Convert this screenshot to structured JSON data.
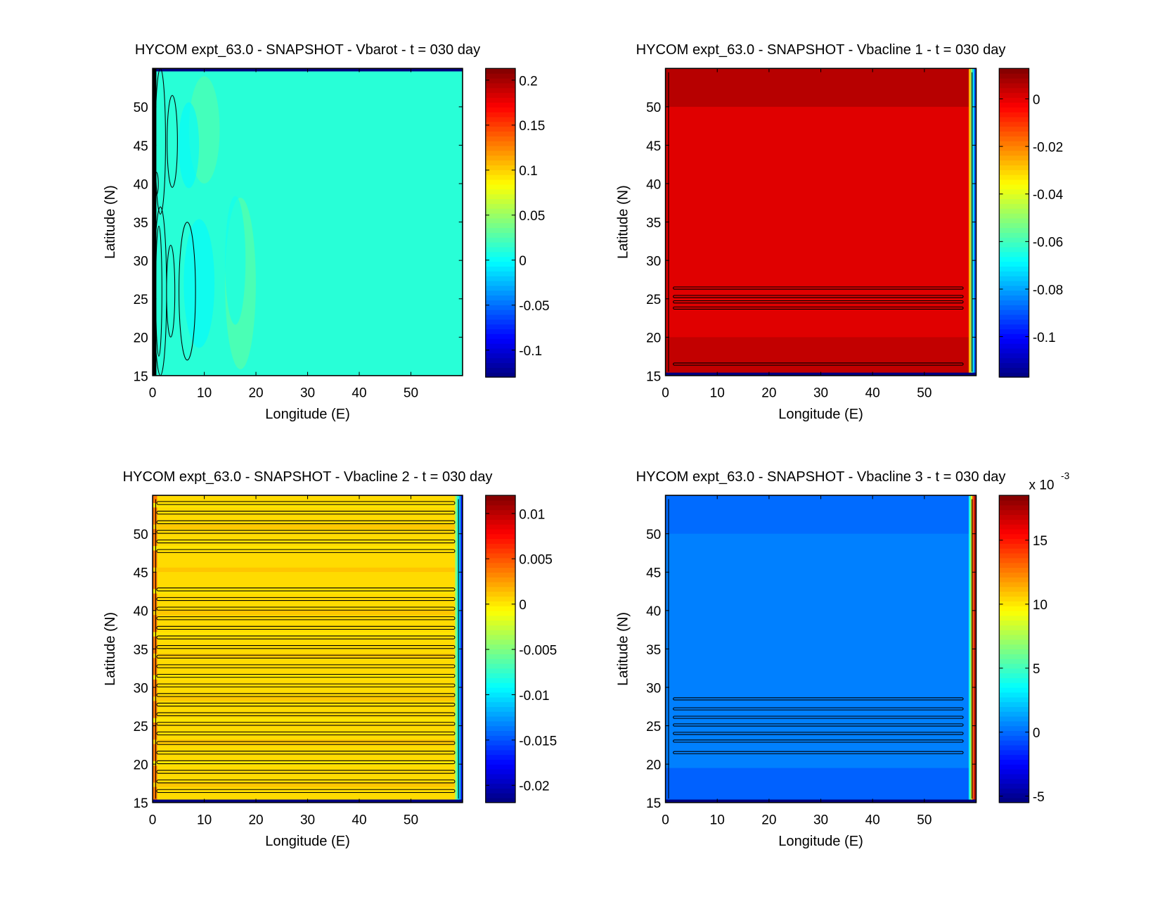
{
  "chart_data": [
    {
      "type": "heatmap",
      "title": "HYCOM expt_63.0 - SNAPSHOT - Vbarot - t = 030 day",
      "xlabel": "Longitude (E)",
      "ylabel": "Latitude (N)",
      "xlim": [
        0,
        60
      ],
      "ylim": [
        15,
        55
      ],
      "xticks": [
        "0",
        "10",
        "20",
        "30",
        "40",
        "50"
      ],
      "yticks": [
        "15",
        "20",
        "25",
        "30",
        "35",
        "40",
        "45",
        "50"
      ],
      "colorbar": {
        "range": [
          -0.13,
          0.213
        ],
        "ticks": [
          -0.1,
          -0.05,
          0,
          0.05,
          0.1,
          0.15,
          0.2
        ],
        "tick_labels": [
          "-0.1",
          "-0.05",
          "0",
          "0.05",
          "0.1",
          "0.15",
          "0.2"
        ],
        "multiplier": null
      },
      "background_value": 0.012,
      "features": "eddies near western boundary (0-8E)"
    },
    {
      "type": "heatmap",
      "title": "HYCOM expt_63.0 - SNAPSHOT - Vbacline 1 - t = 030 day",
      "xlabel": "Longitude (E)",
      "ylabel": "Latitude (N)",
      "xlim": [
        0,
        60
      ],
      "ylim": [
        15,
        55
      ],
      "xticks": [
        "0",
        "10",
        "20",
        "30",
        "40",
        "50"
      ],
      "yticks": [
        "15",
        "20",
        "25",
        "30",
        "35",
        "40",
        "45",
        "50"
      ],
      "colorbar": {
        "range": [
          -0.117,
          0.0128
        ],
        "ticks": [
          -0.1,
          -0.08,
          -0.06,
          -0.04,
          -0.02,
          0
        ],
        "tick_labels": [
          "-0.1",
          "-0.08",
          "-0.06",
          "-0.04",
          "-0.02",
          "0"
        ],
        "multiplier": null
      },
      "background_value": 0.0005,
      "features": "zonal contour bands near 25N; strong eastern boundary gradient"
    },
    {
      "type": "heatmap",
      "title": "HYCOM expt_63.0 - SNAPSHOT - Vbacline 2 - t = 030 day",
      "xlabel": "Longitude (E)",
      "ylabel": "Latitude (N)",
      "xlim": [
        0,
        60
      ],
      "ylim": [
        15,
        55
      ],
      "xticks": [
        "0",
        "10",
        "20",
        "30",
        "40",
        "50"
      ],
      "yticks": [
        "15",
        "20",
        "25",
        "30",
        "35",
        "40",
        "45",
        "50"
      ],
      "colorbar": {
        "range": [
          -0.0219,
          0.012
        ],
        "ticks": [
          -0.02,
          -0.015,
          -0.01,
          -0.005,
          0,
          0.005,
          0.01
        ],
        "tick_labels": [
          "-0.02",
          "-0.015",
          "-0.01",
          "-0.005",
          "0",
          "0.005",
          "0.01"
        ],
        "multiplier": null
      },
      "background_value": 0.0005,
      "features": "many zonal contour bands across basin"
    },
    {
      "type": "heatmap",
      "title": "HYCOM expt_63.0 - SNAPSHOT - Vbacline 3 - t = 030 day",
      "xlabel": "Longitude (E)",
      "ylabel": "Latitude (N)",
      "xlim": [
        0,
        60
      ],
      "ylim": [
        15,
        55
      ],
      "xticks": [
        "0",
        "10",
        "20",
        "30",
        "40",
        "50"
      ],
      "yticks": [
        "15",
        "20",
        "25",
        "30",
        "35",
        "40",
        "45",
        "50"
      ],
      "colorbar": {
        "range": [
          -5.5,
          18.5
        ],
        "ticks": [
          -5,
          0,
          5,
          10,
          15
        ],
        "tick_labels": [
          "-5",
          "0",
          "5",
          "10",
          "15"
        ],
        "multiplier": {
          "base": "x 10",
          "exponent": "-3"
        }
      },
      "background_value": 0.5,
      "features": "zonal contour bands 20-29N; eastern boundary gradient"
    }
  ]
}
